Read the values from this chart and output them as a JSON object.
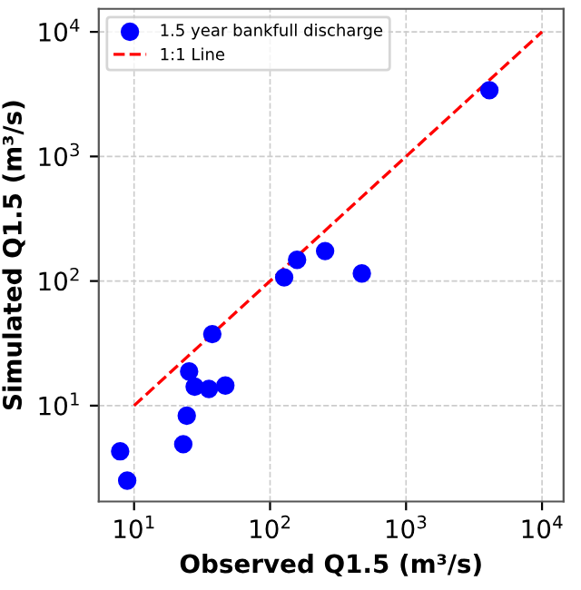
{
  "chart_data": {
    "type": "scatter",
    "xlabel": "Observed Q1.5 (m³/s)",
    "ylabel": "Simulated Q1.5 (m³/s)",
    "log": "xy",
    "grid": true,
    "legend": "top left",
    "marker": "circle",
    "xlim": [
      5.5,
      14400
    ],
    "ylim": [
      1.7,
      15300
    ],
    "xticks": [
      {
        "value": 10,
        "label": "10$^{1}$"
      },
      {
        "value": 100,
        "label": "10$^{2}$"
      },
      {
        "value": 1000,
        "label": "10$^{3}$"
      },
      {
        "value": 10000,
        "label": "10$^{4}$"
      }
    ],
    "yticks": [
      {
        "value": 10,
        "label": "10$^{1}$"
      },
      {
        "value": 100,
        "label": "10$^{2}$"
      },
      {
        "value": 1000,
        "label": "10$^{3}$"
      },
      {
        "value": 10000,
        "label": "10$^{4}$"
      }
    ],
    "series": [
      {
        "name": "1.5 year bankfull discharge",
        "color": "#0000ff",
        "x": [
          7.9,
          8.9,
          23,
          24.4,
          25.4,
          27.9,
          35.5,
          37.6,
          46.9,
          127,
          158,
          254,
          473,
          4100
        ],
        "values": [
          4.3,
          2.5,
          4.9,
          8.3,
          18.8,
          14.2,
          13.6,
          37.5,
          14.5,
          107,
          148,
          174,
          115,
          3400
        ]
      },
      {
        "name": "1:1 Line",
        "type": "line",
        "color": "#ff0000",
        "line_style": "dashed",
        "marker": "none",
        "x": [
          10,
          10000
        ],
        "values": [
          10,
          10000
        ]
      }
    ]
  }
}
